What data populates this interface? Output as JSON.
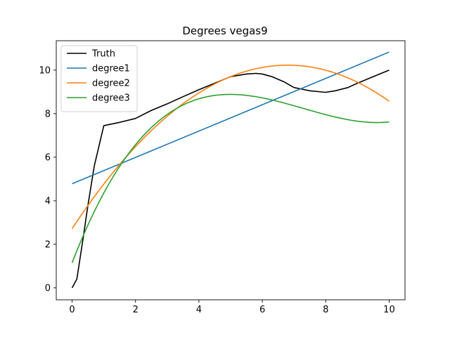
{
  "chart_data": {
    "type": "line",
    "title": "Degrees vegas9",
    "xlabel": "",
    "ylabel": "",
    "xlim": [
      -0.5,
      10.5
    ],
    "ylim": [
      -0.55,
      11.35
    ],
    "xticks": [
      0,
      2,
      4,
      6,
      8,
      10
    ],
    "yticks": [
      0,
      2,
      4,
      6,
      8,
      10
    ],
    "grid": false,
    "legend_position": "top-left",
    "series": [
      {
        "name": "Truth",
        "color": "#000000",
        "x": [
          0,
          0.15,
          0.35,
          0.5,
          0.7,
          1.0,
          1.5,
          2.0,
          2.5,
          3.0,
          3.5,
          4.0,
          4.5,
          5.0,
          5.5,
          5.8,
          6.0,
          6.3,
          6.7,
          7.0,
          7.5,
          8.0,
          8.3,
          8.7,
          9.0,
          9.5,
          10.0
        ],
        "y": [
          0.0,
          0.4,
          2.3,
          3.8,
          5.6,
          7.45,
          7.6,
          7.78,
          8.15,
          8.45,
          8.78,
          9.1,
          9.4,
          9.7,
          9.82,
          9.85,
          9.82,
          9.7,
          9.45,
          9.2,
          9.05,
          8.98,
          9.05,
          9.2,
          9.4,
          9.7,
          10.0
        ]
      },
      {
        "name": "degree1",
        "color": "#1f77b4",
        "fn": "poly",
        "coef": [
          4.78,
          0.605
        ]
      },
      {
        "name": "degree2",
        "color": "#ff7f0e",
        "fn": "poly",
        "coef": [
          2.72,
          2.207,
          -0.1622
        ]
      },
      {
        "name": "degree3",
        "color": "#2ca02c",
        "fn": "poly",
        "coef": [
          1.15,
          3.75,
          -0.571,
          0.02607
        ]
      }
    ]
  }
}
